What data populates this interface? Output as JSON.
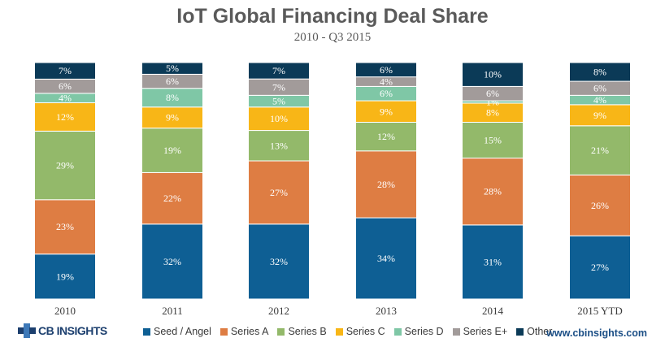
{
  "chart_data": {
    "type": "bar",
    "stacked": true,
    "title": "IoT Global Financing Deal Share",
    "subtitle": "2010 - Q3 2015",
    "categories": [
      "2010",
      "2011",
      "2012",
      "2013",
      "2014",
      "2015 YTD"
    ],
    "series": [
      {
        "name": "Seed / Angel",
        "color": "#0e5f94",
        "values": [
          19,
          32,
          32,
          34,
          31,
          27
        ]
      },
      {
        "name": "Series A",
        "color": "#de7d43",
        "values": [
          23,
          22,
          27,
          28,
          28,
          26
        ]
      },
      {
        "name": "Series B",
        "color": "#93b96a",
        "values": [
          29,
          19,
          13,
          12,
          15,
          21
        ]
      },
      {
        "name": "Series C",
        "color": "#f8b617",
        "values": [
          12,
          9,
          10,
          9,
          8,
          9
        ]
      },
      {
        "name": "Series D",
        "color": "#7fc7a6",
        "values": [
          4,
          8,
          5,
          6,
          1,
          4
        ]
      },
      {
        "name": "Series E+",
        "color": "#a29b9a",
        "values": [
          6,
          6,
          7,
          4,
          6,
          6
        ]
      },
      {
        "name": "Other",
        "color": "#0b3a57",
        "values": [
          7,
          5,
          7,
          6,
          10,
          8
        ]
      }
    ],
    "value_suffix": "%",
    "legend_position": "bottom"
  },
  "brand": {
    "logo_text": "CB INSIGHTS",
    "website": "www.cbinsights.com"
  }
}
